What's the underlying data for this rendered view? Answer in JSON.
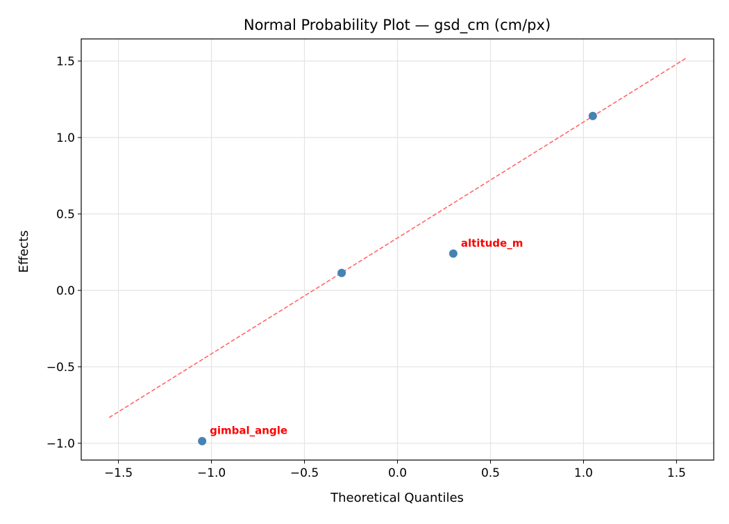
{
  "chart_data": {
    "type": "scatter",
    "title": "Normal Probability Plot — gsd_cm (cm/px)",
    "xlabel": "Theoretical Quantiles",
    "ylabel": "Effects",
    "xlim": [
      -1.7,
      1.7
    ],
    "ylim": [
      -1.11,
      1.645
    ],
    "xticks": [
      -1.5,
      -1.0,
      -0.5,
      0.0,
      0.5,
      1.0,
      1.5
    ],
    "xtick_labels": [
      "−1.5",
      "−1.0",
      "−0.5",
      "0.0",
      "0.5",
      "1.0",
      "1.5"
    ],
    "yticks": [
      -1.0,
      -0.5,
      0.0,
      0.5,
      1.0,
      1.5
    ],
    "ytick_labels": [
      "−1.0",
      "−0.5",
      "0.0",
      "0.5",
      "1.0",
      "1.5"
    ],
    "grid": true,
    "points": [
      {
        "x": -1.05,
        "y": -0.986,
        "label": "gimbal_angle"
      },
      {
        "x": -0.3,
        "y": 0.114,
        "label": ""
      },
      {
        "x": 0.3,
        "y": 0.241,
        "label": "altitude_m"
      },
      {
        "x": 1.05,
        "y": 1.141,
        "label": ""
      }
    ],
    "reference_line": {
      "x": [
        -1.55,
        1.55
      ],
      "y": [
        -0.832,
        1.518
      ]
    },
    "colors": {
      "points": "#4682b4",
      "reference_line": "#ff6666",
      "labels": "#ff0000"
    }
  }
}
